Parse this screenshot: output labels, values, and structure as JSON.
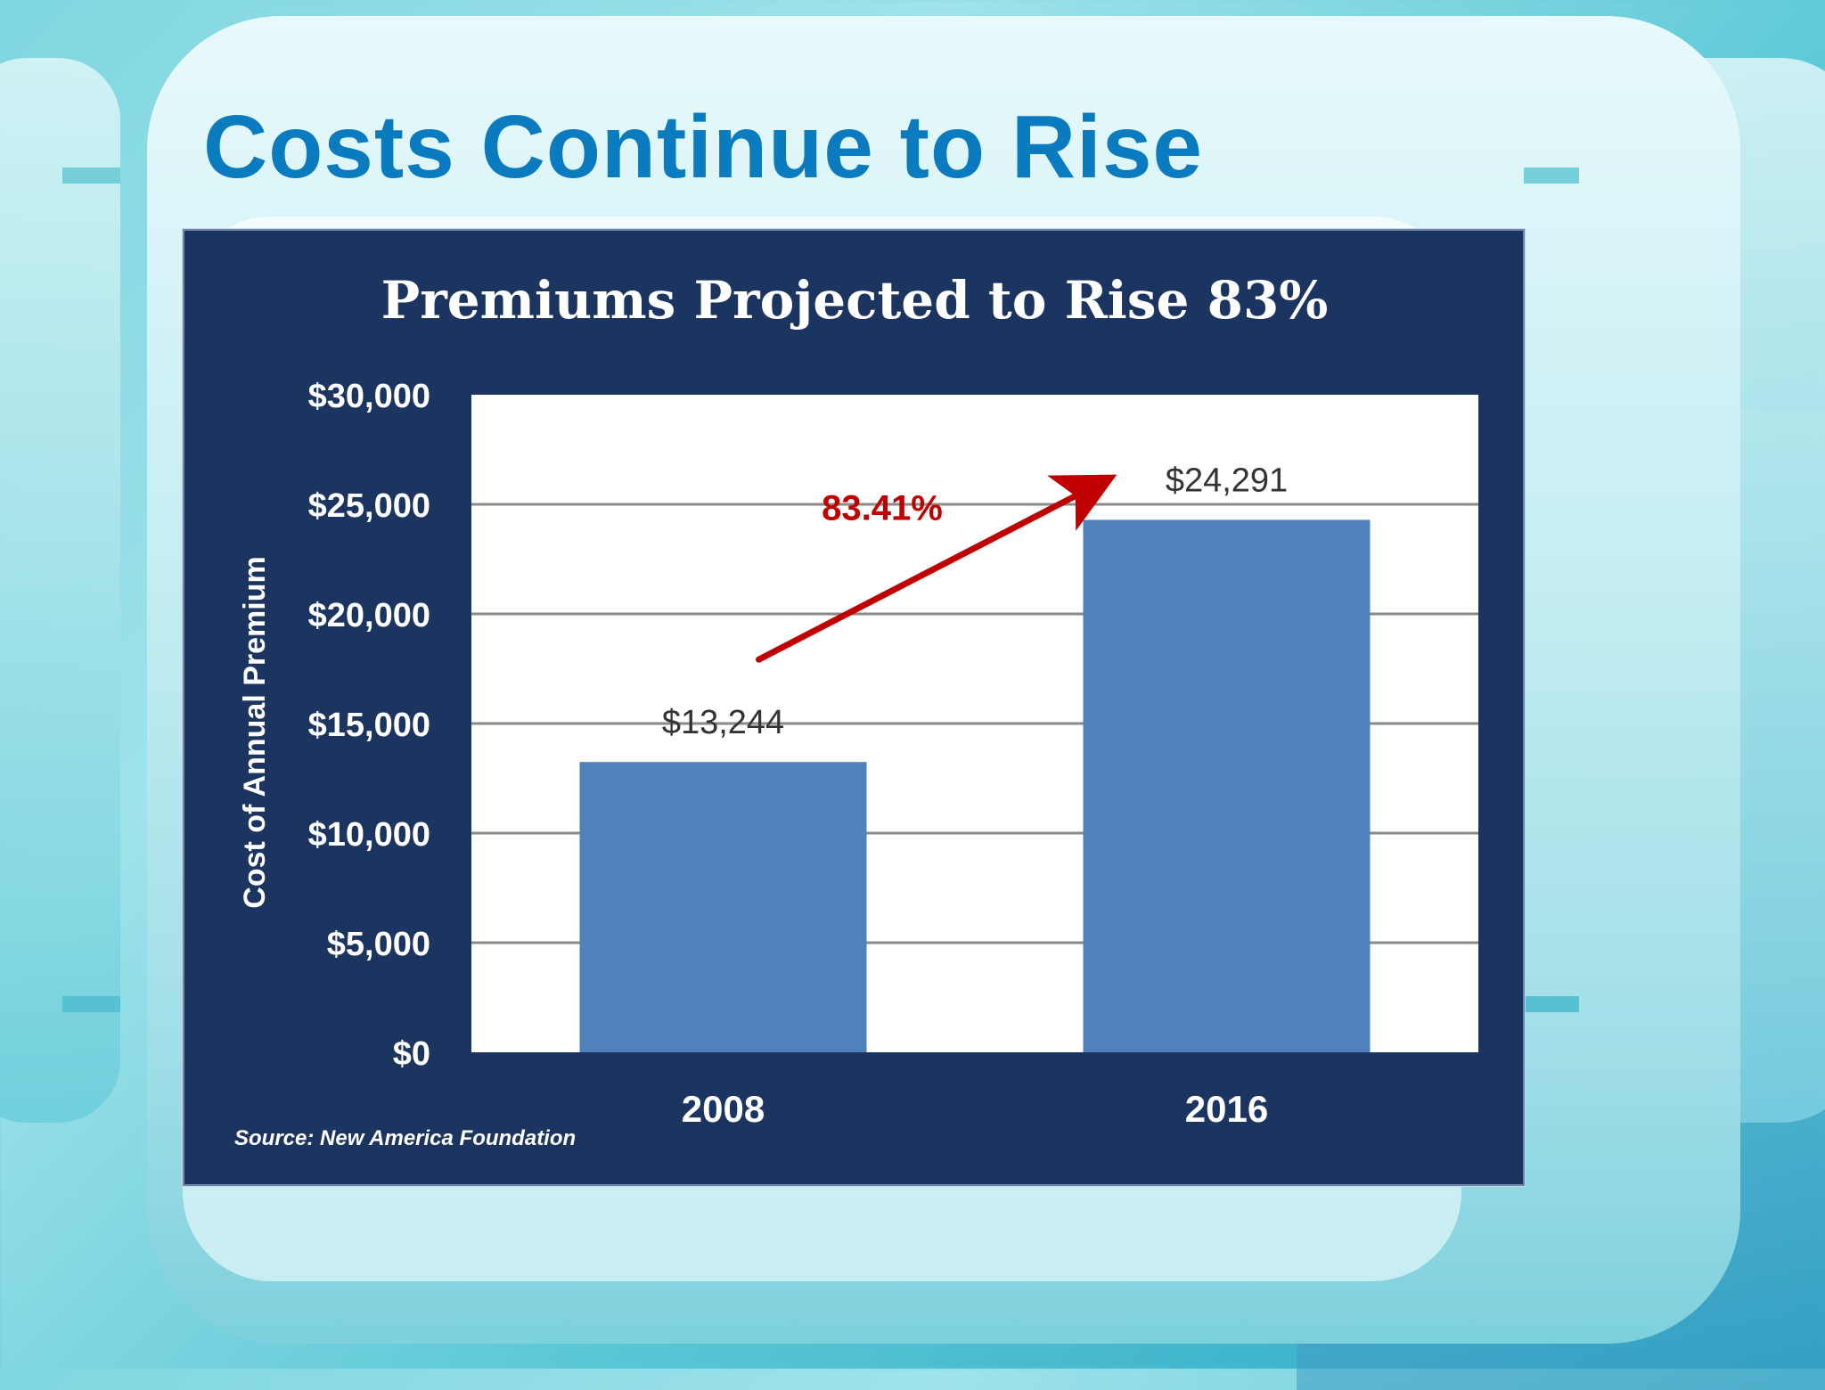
{
  "slide": {
    "title": "Costs Continue to Rise"
  },
  "colors": {
    "chart_background": "#1c3560",
    "plot_background": "#ffffff",
    "bar": "#4f81bd",
    "arrow": "#c00000",
    "title_text": "#0a7bbf"
  },
  "chart_data": {
    "type": "bar",
    "title": "Premiums Projected to Rise 83%",
    "categories": [
      "2008",
      "2016"
    ],
    "values": [
      13244,
      24291
    ],
    "data_labels": [
      "$13,244",
      "$24,291"
    ],
    "ylabel": "Cost of Annual Premium",
    "xlabel": "",
    "ylim": [
      0,
      30000
    ],
    "yticks": [
      0,
      5000,
      10000,
      15000,
      20000,
      25000,
      30000
    ],
    "ytick_labels": [
      "$0",
      "$5,000",
      "$10,000",
      "$15,000",
      "$20,000",
      "$25,000",
      "$30,000"
    ],
    "grid": true,
    "annotation": "83.41%",
    "source": "Source: New America Foundation"
  }
}
